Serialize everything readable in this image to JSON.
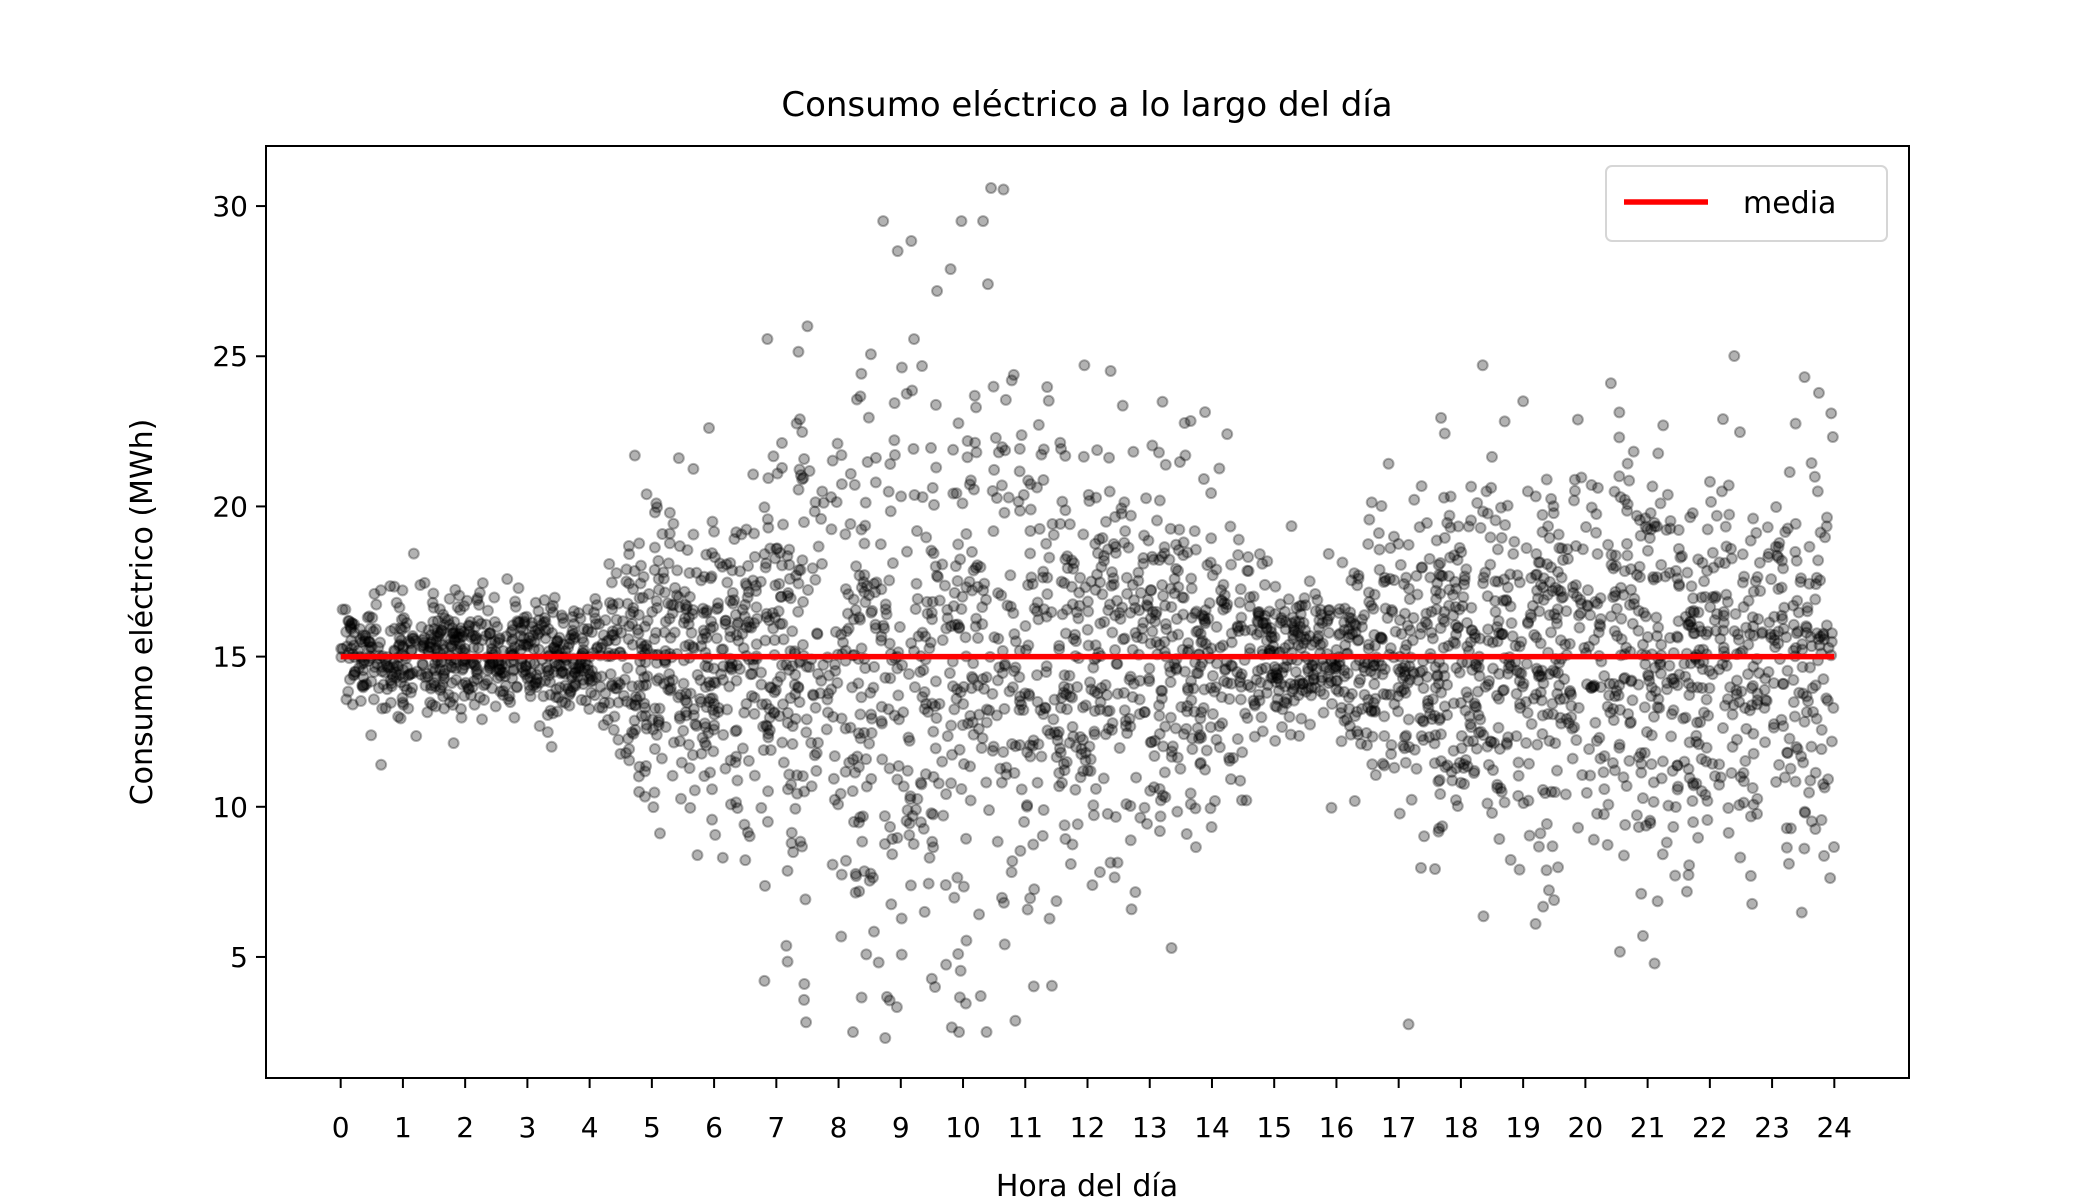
{
  "chart_data": {
    "type": "scatter",
    "title": "Consumo eléctrico a lo largo del día",
    "xlabel": "Hora del día",
    "ylabel": "Consumo eléctrico (MWh)",
    "xlim": [
      -1.2,
      25.2
    ],
    "ylim": [
      0.97,
      32.0
    ],
    "xticks": [
      0,
      1,
      2,
      3,
      4,
      5,
      6,
      7,
      8,
      9,
      10,
      11,
      12,
      13,
      14,
      15,
      16,
      17,
      18,
      19,
      20,
      21,
      22,
      23,
      24
    ],
    "yticks": [
      5,
      10,
      15,
      20,
      25,
      30
    ],
    "grid": false,
    "legend": {
      "placement": "top-right",
      "entries": [
        {
          "label": "media",
          "color": "#ff0000"
        }
      ]
    },
    "scatter_color": "#000000",
    "scatter_alpha": 0.3,
    "mean_line": {
      "label": "media",
      "y": 15,
      "x": [
        0,
        24
      ],
      "color": "#ff0000"
    },
    "approx_n_points": 3600,
    "spread_std_by_hour": [
      0.9,
      1.0,
      1.0,
      1.0,
      1.0,
      2.5,
      2.8,
      3.5,
      4.5,
      5.0,
      5.0,
      4.5,
      3.5,
      3.0,
      2.7,
      1.2,
      1.2,
      3.0,
      3.2,
      3.3,
      3.3,
      3.2,
      3.0,
      3.2,
      3.5
    ],
    "notable_points": [
      {
        "x": 10.45,
        "y": 30.6
      },
      {
        "x": 10.65,
        "y": 30.55
      },
      {
        "x": 8.95,
        "y": 28.5
      },
      {
        "x": 9.8,
        "y": 27.9
      },
      {
        "x": 10.4,
        "y": 27.4
      },
      {
        "x": 8.75,
        "y": 2.3
      },
      {
        "x": 7.45,
        "y": 4.1
      },
      {
        "x": 9.55,
        "y": 4.0
      },
      {
        "x": 13.35,
        "y": 5.3
      },
      {
        "x": 0.65,
        "y": 11.4
      },
      {
        "x": 18.35,
        "y": 24.7
      },
      {
        "x": 23.95,
        "y": 23.1
      },
      {
        "x": 19.0,
        "y": 23.5
      },
      {
        "x": 21.25,
        "y": 22.7
      },
      {
        "x": 19.2,
        "y": 6.1
      },
      {
        "x": 7.5,
        "y": 26.0
      },
      {
        "x": 11.95,
        "y": 24.7
      }
    ]
  }
}
